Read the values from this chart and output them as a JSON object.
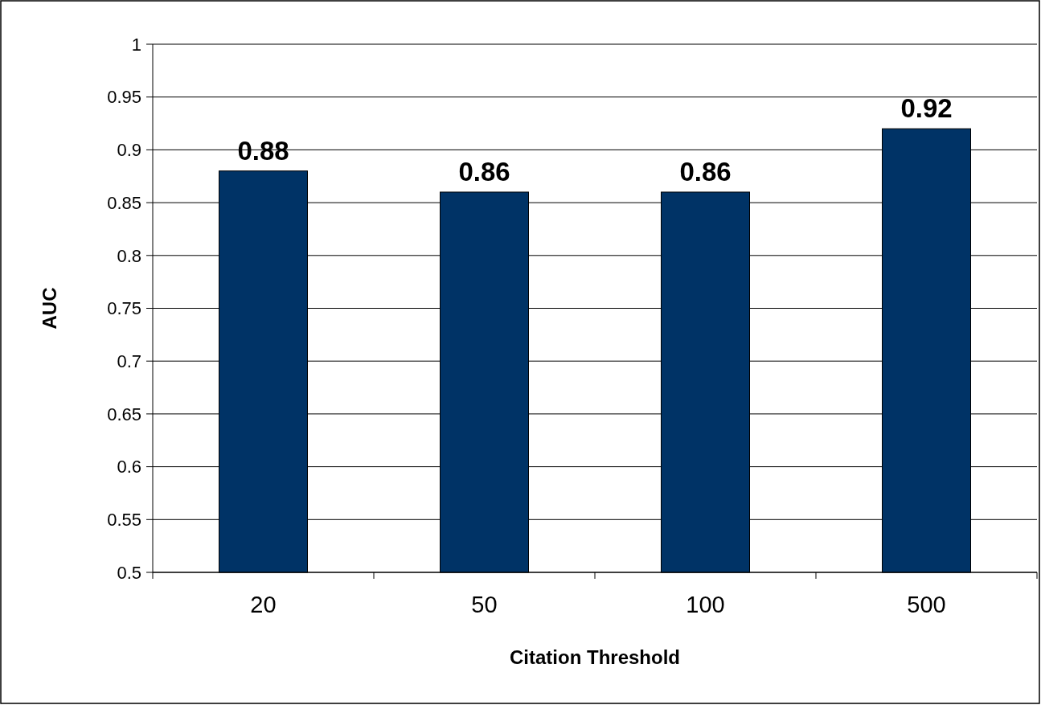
{
  "chart_data": {
    "type": "bar",
    "xlabel": "Citation Threshold",
    "ylabel": "AUC",
    "categories": [
      "20",
      "50",
      "100",
      "500"
    ],
    "values": [
      0.88,
      0.86,
      0.86,
      0.92
    ],
    "color": "#003366",
    "ylim": [
      0.5,
      1
    ],
    "yticks": [
      0.5,
      0.55,
      0.6,
      0.65,
      0.7,
      0.75,
      0.8,
      0.85,
      0.9,
      0.95,
      1
    ],
    "grid": "y",
    "data_labels": true
  }
}
